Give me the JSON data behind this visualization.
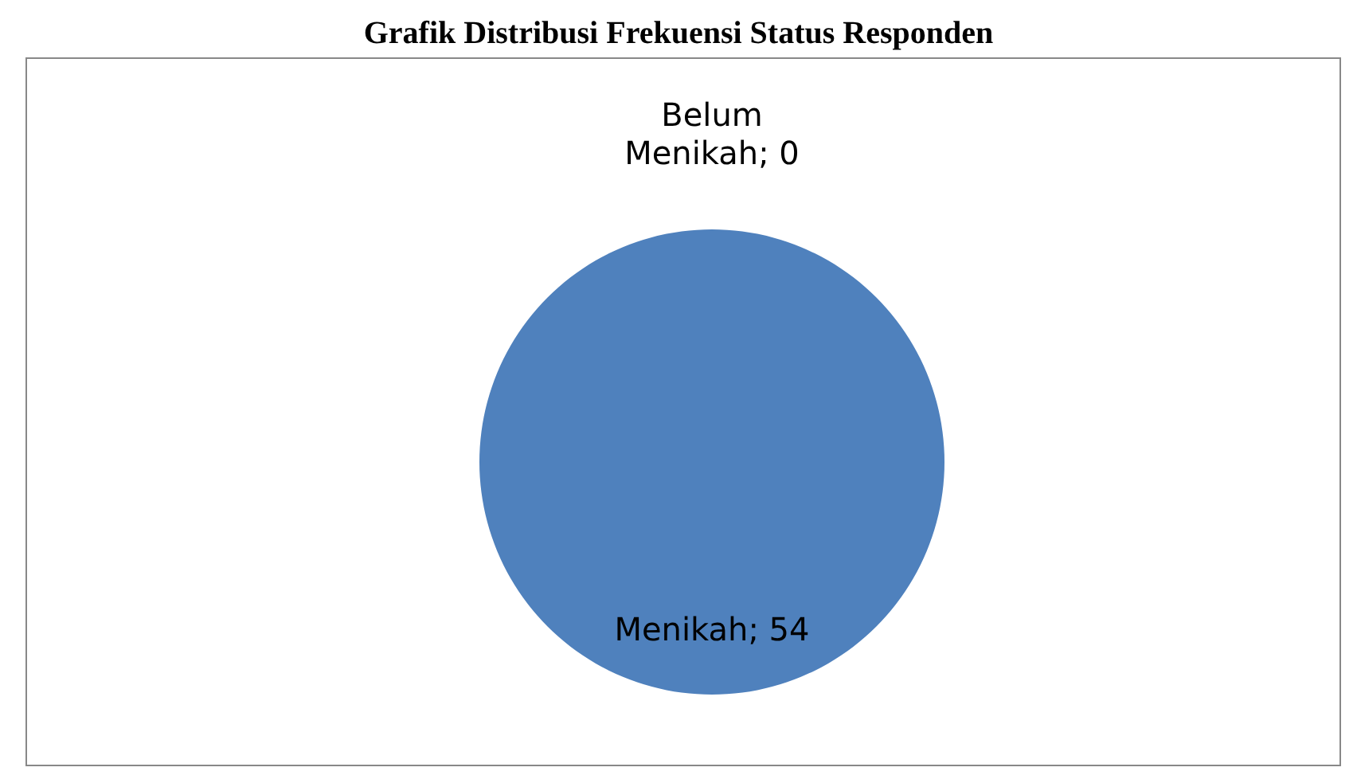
{
  "chart_data": {
    "type": "pie",
    "title": "Grafik Distribusi Frekuensi Status Responden",
    "categories": [
      "Belum Menikah",
      "Menikah"
    ],
    "values": [
      0,
      54
    ],
    "colors": [
      "#c0504d",
      "#4f81bd"
    ],
    "value_labels": [
      "; 0",
      "; 54"
    ],
    "legend": false
  }
}
